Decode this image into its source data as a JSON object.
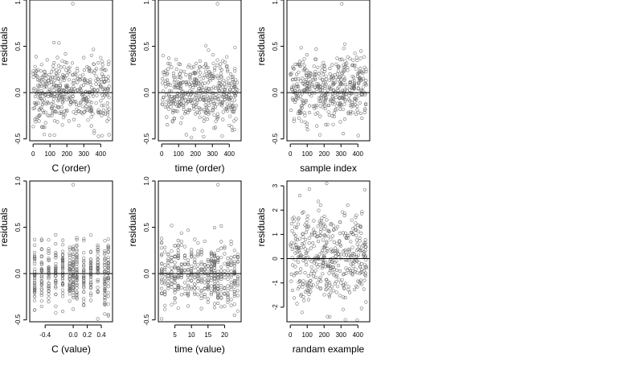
{
  "figure": {
    "ylabel": "residuals",
    "grid": false
  },
  "chart_data": [
    {
      "type": "scatter",
      "xlabel": "C (order)",
      "ylabel": "residuals",
      "xticks": [
        "0",
        "100",
        "200",
        "300",
        "400"
      ],
      "xtick_values": [
        0,
        100,
        200,
        300,
        400
      ],
      "yticks": [
        "-0.5",
        "0.0",
        "0.5",
        "1.0"
      ],
      "ytick_values": [
        -0.5,
        0,
        0.5,
        1.0
      ],
      "xlim": [
        -20,
        470
      ],
      "ylim": [
        -0.52,
        1.0
      ],
      "reference_line": 0,
      "points": {
        "n": 450,
        "x_range": [
          0,
          450
        ],
        "y_center": 0.0,
        "y_spread": 0.18,
        "outlier": [
          235,
          0.96
        ]
      }
    },
    {
      "type": "scatter",
      "xlabel": "time (order)",
      "ylabel": "residuals",
      "xticks": [
        "0",
        "100",
        "200",
        "300",
        "400"
      ],
      "xtick_values": [
        0,
        100,
        200,
        300,
        400
      ],
      "yticks": [
        "-0.5",
        "0.0",
        "0.5",
        "1.0"
      ],
      "ytick_values": [
        -0.5,
        0,
        0.5,
        1.0
      ],
      "xlim": [
        -20,
        470
      ],
      "ylim": [
        -0.52,
        1.0
      ],
      "reference_line": 0,
      "points": {
        "n": 450,
        "x_range": [
          0,
          450
        ],
        "y_center": 0.0,
        "y_spread": 0.18,
        "outlier": [
          330,
          0.96
        ]
      }
    },
    {
      "type": "scatter",
      "xlabel": "sample index",
      "ylabel": "residuals",
      "xticks": [
        "0",
        "100",
        "200",
        "300",
        "400"
      ],
      "xtick_values": [
        0,
        100,
        200,
        300,
        400
      ],
      "yticks": [
        "-0.5",
        "0.0",
        "0.5",
        "1.0"
      ],
      "ytick_values": [
        -0.5,
        0,
        0.5,
        1.0
      ],
      "xlim": [
        -20,
        470
      ],
      "ylim": [
        -0.52,
        1.0
      ],
      "reference_line": 0,
      "points": {
        "n": 450,
        "x_range": [
          0,
          450
        ],
        "y_center": 0.05,
        "y_spread": 0.18,
        "outlier": [
          305,
          0.96
        ]
      }
    },
    {
      "type": "scatter",
      "xlabel": "C (value)",
      "ylabel": "residuals",
      "xticks": [
        "-0.4",
        "0.0",
        "0.2",
        "0.4"
      ],
      "xtick_values": [
        -0.4,
        0.0,
        0.2,
        0.4
      ],
      "yticks": [
        "-0.5",
        "0.0",
        "0.5",
        "1.0"
      ],
      "ytick_values": [
        -0.5,
        0,
        0.5,
        1.0
      ],
      "xlim": [
        -0.62,
        0.56
      ],
      "ylim": [
        -0.52,
        1.0
      ],
      "reference_line": 0,
      "points": {
        "n": 450,
        "x_discrete": [
          -0.55,
          -0.45,
          -0.35,
          -0.25,
          -0.15,
          -0.05,
          0.0,
          0.05,
          0.15,
          0.25,
          0.35,
          0.45,
          0.5
        ],
        "y_center": 0.0,
        "y_spread": 0.18,
        "outlier": [
          0.0,
          0.96
        ]
      }
    },
    {
      "type": "scatter",
      "xlabel": "time (value)",
      "ylabel": "residuals",
      "xticks": [
        "5",
        "10",
        "15",
        "20"
      ],
      "xtick_values": [
        5,
        10,
        15,
        20
      ],
      "yticks": [
        "-0.5",
        "0.0",
        "0.5",
        "1.0"
      ],
      "ytick_values": [
        -0.5,
        0,
        0.5,
        1.0
      ],
      "xlim": [
        0,
        25
      ],
      "ylim": [
        -0.52,
        1.0
      ],
      "reference_line": 0,
      "points": {
        "n": 450,
        "x_discrete": [
          1,
          2,
          3,
          4,
          5,
          6,
          7,
          8,
          9,
          10,
          11,
          12,
          13,
          14,
          15,
          16,
          17,
          18,
          19,
          20,
          21,
          22,
          23,
          24
        ],
        "y_center": 0.0,
        "y_spread": 0.18,
        "outlier": [
          18,
          0.96
        ]
      }
    },
    {
      "type": "scatter",
      "xlabel": "randam example",
      "ylabel": "residuals",
      "xticks": [
        "0",
        "100",
        "200",
        "300",
        "400"
      ],
      "xtick_values": [
        0,
        100,
        200,
        300,
        400
      ],
      "yticks": [
        "-2",
        "-1",
        "0",
        "1",
        "2",
        "3"
      ],
      "ytick_values": [
        -2,
        -1,
        0,
        1,
        2,
        3
      ],
      "xlim": [
        -20,
        470
      ],
      "ylim": [
        -2.6,
        3.2
      ],
      "reference_line": 0,
      "points": {
        "n": 450,
        "x_range": [
          0,
          450
        ],
        "y_center": 0.1,
        "y_spread": 1.0,
        "outlier": [
          215,
          3.1
        ]
      }
    }
  ]
}
